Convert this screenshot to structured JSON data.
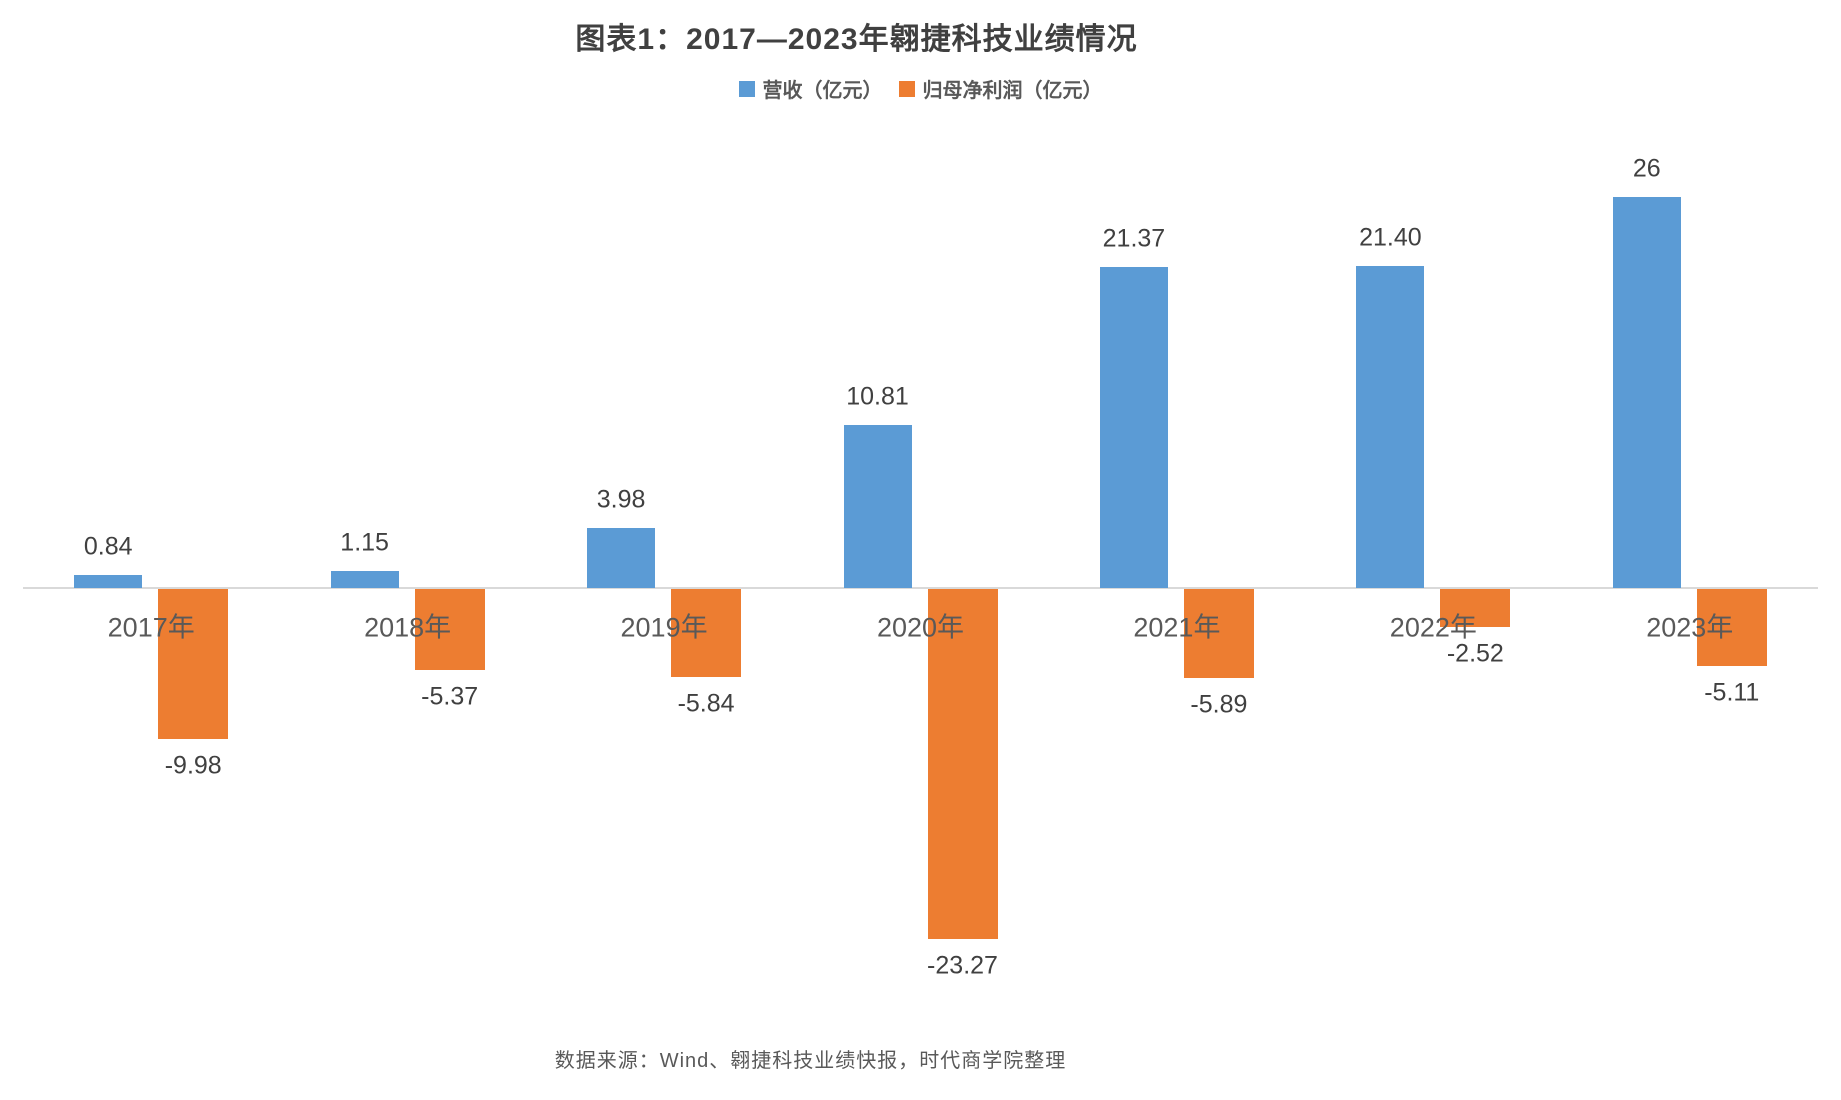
{
  "page": {
    "background": "#ffffff"
  },
  "chart_data": {
    "type": "bar",
    "title": "图表1：2017—2023年翱捷科技业绩情况",
    "categories": [
      "2017年",
      "2018年",
      "2019年",
      "2020年",
      "2021年",
      "2022年",
      "2023年"
    ],
    "series": [
      {
        "name": "营收（亿元）",
        "color": "#5B9BD5",
        "values": [
          0.84,
          1.15,
          3.98,
          10.81,
          21.37,
          21.4,
          26
        ],
        "value_labels": [
          "0.84",
          "1.15",
          "3.98",
          "10.81",
          "21.37",
          "21.40",
          "26"
        ]
      },
      {
        "name": "归母净利润（亿元）",
        "color": "#ED7D31",
        "values": [
          -9.98,
          -5.37,
          -5.84,
          -23.27,
          -5.89,
          -2.52,
          -5.11
        ],
        "value_labels": [
          "-9.98",
          "-5.37",
          "-5.84",
          "-23.27",
          "-5.89",
          "-2.52",
          "-5.11"
        ]
      }
    ],
    "legend_position": "top",
    "gridlines": false,
    "baseline_value": 0,
    "ylim": [
      -25,
      27
    ],
    "source_note": "数据来源：Wind、翱捷科技业绩快报，时代商学院整理"
  },
  "colors": {
    "title_text": "#404040",
    "value_label_text": "#404040",
    "category_label_text": "#595959",
    "source_text": "#595959",
    "axis_line": "#d9d9d9"
  }
}
